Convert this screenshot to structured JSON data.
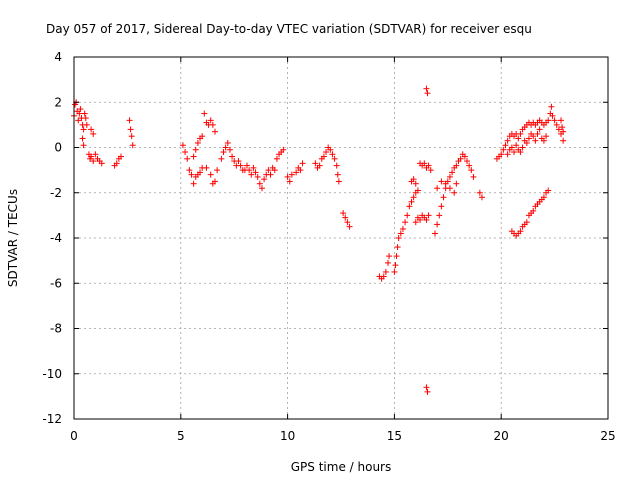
{
  "chart_data": {
    "type": "scatter",
    "title": "Day 057 of 2017, Sidereal Day-to-day VTEC variation (SDTVAR) for receiver esqu",
    "xlabel": "GPS time / hours",
    "ylabel": "SDTVAR / TECUs",
    "xlim": [
      0,
      25
    ],
    "ylim": [
      -12,
      4
    ],
    "xticks": [
      "0",
      "5",
      "10",
      "15",
      "20",
      "25"
    ],
    "yticks": [
      "4",
      "2",
      "0",
      "-2",
      "-4",
      "-6",
      "-8",
      "-10",
      "-12"
    ],
    "grid": true,
    "marker": "+",
    "series_color": "#ff0000",
    "series": [
      {
        "name": "SDTVAR",
        "points": [
          [
            0.0,
            1.4
          ],
          [
            0.05,
            1.9
          ],
          [
            0.1,
            2.0
          ],
          [
            0.15,
            1.6
          ],
          [
            0.2,
            1.2
          ],
          [
            0.25,
            1.5
          ],
          [
            0.3,
            1.7
          ],
          [
            0.35,
            1.3
          ],
          [
            0.4,
            1.0
          ],
          [
            0.45,
            0.8
          ],
          [
            0.5,
            1.5
          ],
          [
            0.55,
            1.3
          ],
          [
            0.6,
            1.0
          ],
          [
            0.4,
            0.4
          ],
          [
            0.45,
            0.1
          ],
          [
            0.7,
            -0.3
          ],
          [
            0.75,
            -0.5
          ],
          [
            0.8,
            -0.4
          ],
          [
            0.9,
            -0.6
          ],
          [
            1.0,
            -0.3
          ],
          [
            1.1,
            -0.5
          ],
          [
            1.2,
            -0.6
          ],
          [
            1.3,
            -0.7
          ],
          [
            0.8,
            0.8
          ],
          [
            0.9,
            0.6
          ],
          [
            1.9,
            -0.8
          ],
          [
            2.0,
            -0.7
          ],
          [
            2.1,
            -0.5
          ],
          [
            2.2,
            -0.4
          ],
          [
            2.6,
            1.2
          ],
          [
            2.65,
            0.8
          ],
          [
            2.7,
            0.5
          ],
          [
            2.75,
            0.1
          ],
          [
            5.1,
            0.1
          ],
          [
            5.2,
            -0.2
          ],
          [
            5.3,
            -0.5
          ],
          [
            5.4,
            -1.0
          ],
          [
            5.5,
            -1.2
          ],
          [
            5.6,
            -0.4
          ],
          [
            5.7,
            -0.1
          ],
          [
            5.8,
            0.2
          ],
          [
            5.9,
            0.4
          ],
          [
            6.0,
            0.5
          ],
          [
            5.6,
            -1.6
          ],
          [
            5.7,
            -1.3
          ],
          [
            5.8,
            -1.2
          ],
          [
            5.9,
            -1.1
          ],
          [
            6.0,
            -0.9
          ],
          [
            6.1,
            1.5
          ],
          [
            6.2,
            1.1
          ],
          [
            6.3,
            1.0
          ],
          [
            6.4,
            1.2
          ],
          [
            6.5,
            1.0
          ],
          [
            6.6,
            0.7
          ],
          [
            6.2,
            -0.9
          ],
          [
            6.4,
            -1.2
          ],
          [
            6.5,
            -1.6
          ],
          [
            6.6,
            -1.5
          ],
          [
            6.7,
            -1.0
          ],
          [
            6.9,
            -0.5
          ],
          [
            7.0,
            -0.2
          ],
          [
            7.1,
            0.0
          ],
          [
            7.2,
            0.2
          ],
          [
            7.3,
            -0.1
          ],
          [
            7.4,
            -0.4
          ],
          [
            7.5,
            -0.6
          ],
          [
            7.6,
            -0.8
          ],
          [
            7.7,
            -0.6
          ],
          [
            7.8,
            -0.8
          ],
          [
            7.9,
            -1.0
          ],
          [
            8.0,
            -1.0
          ],
          [
            8.1,
            -0.8
          ],
          [
            8.2,
            -1.0
          ],
          [
            8.3,
            -1.2
          ],
          [
            8.4,
            -0.9
          ],
          [
            8.5,
            -1.1
          ],
          [
            8.6,
            -1.3
          ],
          [
            8.7,
            -1.6
          ],
          [
            8.8,
            -1.8
          ],
          [
            8.9,
            -1.4
          ],
          [
            9.0,
            -1.2
          ],
          [
            9.1,
            -1.0
          ],
          [
            9.2,
            -1.2
          ],
          [
            9.3,
            -0.9
          ],
          [
            9.4,
            -1.0
          ],
          [
            9.5,
            -0.5
          ],
          [
            9.6,
            -0.3
          ],
          [
            9.7,
            -0.2
          ],
          [
            9.8,
            -0.1
          ],
          [
            10.0,
            -1.3
          ],
          [
            10.1,
            -1.5
          ],
          [
            10.2,
            -1.2
          ],
          [
            10.4,
            -1.1
          ],
          [
            10.5,
            -0.9
          ],
          [
            10.6,
            -1.0
          ],
          [
            10.7,
            -0.7
          ],
          [
            11.3,
            -0.7
          ],
          [
            11.4,
            -0.9
          ],
          [
            11.5,
            -0.8
          ],
          [
            11.6,
            -0.5
          ],
          [
            11.7,
            -0.4
          ],
          [
            11.8,
            -0.2
          ],
          [
            11.9,
            0.0
          ],
          [
            12.0,
            -0.1
          ],
          [
            12.1,
            -0.3
          ],
          [
            12.2,
            -0.5
          ],
          [
            12.3,
            -0.8
          ],
          [
            12.35,
            -1.2
          ],
          [
            12.4,
            -1.5
          ],
          [
            12.6,
            -2.9
          ],
          [
            12.7,
            -3.1
          ],
          [
            12.8,
            -3.3
          ],
          [
            12.9,
            -3.5
          ],
          [
            14.3,
            -5.7
          ],
          [
            14.4,
            -5.8
          ],
          [
            14.5,
            -5.7
          ],
          [
            14.6,
            -5.5
          ],
          [
            14.7,
            -5.1
          ],
          [
            14.75,
            -4.8
          ],
          [
            15.0,
            -5.5
          ],
          [
            15.05,
            -5.2
          ],
          [
            15.1,
            -4.8
          ],
          [
            15.15,
            -4.4
          ],
          [
            15.2,
            -4.0
          ],
          [
            15.3,
            -3.8
          ],
          [
            15.4,
            -3.6
          ],
          [
            15.5,
            -3.3
          ],
          [
            15.6,
            -3.0
          ],
          [
            15.7,
            -2.6
          ],
          [
            15.8,
            -2.4
          ],
          [
            15.9,
            -2.2
          ],
          [
            16.0,
            -2.0
          ],
          [
            15.8,
            -1.5
          ],
          [
            15.9,
            -1.4
          ],
          [
            16.0,
            -1.6
          ],
          [
            16.1,
            -1.9
          ],
          [
            16.2,
            -0.7
          ],
          [
            16.3,
            -0.8
          ],
          [
            16.4,
            -0.7
          ],
          [
            16.5,
            -0.9
          ],
          [
            16.6,
            -0.8
          ],
          [
            16.7,
            -1.0
          ],
          [
            16.0,
            -3.3
          ],
          [
            16.1,
            -3.1
          ],
          [
            16.2,
            -3.2
          ],
          [
            16.3,
            -3.0
          ],
          [
            16.4,
            -3.1
          ],
          [
            16.5,
            -3.2
          ],
          [
            16.6,
            -3.0
          ],
          [
            16.5,
            2.6
          ],
          [
            16.55,
            2.4
          ],
          [
            16.5,
            -10.6
          ],
          [
            16.55,
            -10.8
          ],
          [
            16.9,
            -3.8
          ],
          [
            17.0,
            -3.4
          ],
          [
            17.1,
            -3.0
          ],
          [
            17.2,
            -2.6
          ],
          [
            17.3,
            -2.2
          ],
          [
            17.4,
            -1.8
          ],
          [
            17.5,
            -1.5
          ],
          [
            17.6,
            -1.3
          ],
          [
            17.7,
            -1.1
          ],
          [
            17.8,
            -0.9
          ],
          [
            17.9,
            -0.8
          ],
          [
            18.0,
            -0.6
          ],
          [
            18.1,
            -0.5
          ],
          [
            18.2,
            -0.3
          ],
          [
            18.3,
            -0.4
          ],
          [
            18.4,
            -0.6
          ],
          [
            18.5,
            -0.8
          ],
          [
            18.6,
            -1.0
          ],
          [
            18.7,
            -1.3
          ],
          [
            17.0,
            -1.8
          ],
          [
            17.2,
            -1.5
          ],
          [
            17.4,
            -1.6
          ],
          [
            17.6,
            -1.8
          ],
          [
            17.8,
            -2.0
          ],
          [
            17.9,
            -1.6
          ],
          [
            19.0,
            -2.0
          ],
          [
            19.1,
            -2.2
          ],
          [
            19.8,
            -0.5
          ],
          [
            19.9,
            -0.4
          ],
          [
            20.0,
            -0.3
          ],
          [
            20.1,
            -0.1
          ],
          [
            20.2,
            0.1
          ],
          [
            20.3,
            0.3
          ],
          [
            20.4,
            0.5
          ],
          [
            20.5,
            0.6
          ],
          [
            20.6,
            0.5
          ],
          [
            20.7,
            0.6
          ],
          [
            20.8,
            0.4
          ],
          [
            20.9,
            0.6
          ],
          [
            21.0,
            0.8
          ],
          [
            21.1,
            0.9
          ],
          [
            21.2,
            1.0
          ],
          [
            21.3,
            1.1
          ],
          [
            21.4,
            1.0
          ],
          [
            21.5,
            1.1
          ],
          [
            21.6,
            1.0
          ],
          [
            21.7,
            1.1
          ],
          [
            21.8,
            1.2
          ],
          [
            21.9,
            1.1
          ],
          [
            22.0,
            1.0
          ],
          [
            22.1,
            1.1
          ],
          [
            20.3,
            -0.3
          ],
          [
            20.4,
            -0.1
          ],
          [
            20.5,
            0.0
          ],
          [
            20.6,
            -0.2
          ],
          [
            20.7,
            0.1
          ],
          [
            20.8,
            -0.1
          ],
          [
            20.9,
            -0.2
          ],
          [
            21.0,
            0.0
          ],
          [
            21.1,
            0.3
          ],
          [
            21.2,
            0.2
          ],
          [
            21.3,
            0.4
          ],
          [
            21.4,
            0.6
          ],
          [
            21.5,
            0.5
          ],
          [
            21.6,
            0.3
          ],
          [
            21.7,
            0.6
          ],
          [
            21.8,
            0.8
          ],
          [
            21.9,
            0.4
          ],
          [
            22.0,
            0.3
          ],
          [
            22.1,
            0.5
          ],
          [
            22.2,
            1.2
          ],
          [
            22.3,
            1.5
          ],
          [
            22.35,
            1.8
          ],
          [
            22.4,
            1.4
          ],
          [
            22.5,
            1.2
          ],
          [
            22.6,
            1.0
          ],
          [
            22.7,
            0.8
          ],
          [
            22.8,
            0.6
          ],
          [
            22.85,
            0.9
          ],
          [
            22.9,
            0.3
          ],
          [
            22.8,
            1.2
          ],
          [
            22.9,
            0.7
          ],
          [
            20.5,
            -3.7
          ],
          [
            20.6,
            -3.8
          ],
          [
            20.7,
            -3.9
          ],
          [
            20.8,
            -3.8
          ],
          [
            20.9,
            -3.7
          ],
          [
            21.0,
            -3.5
          ],
          [
            21.1,
            -3.4
          ],
          [
            21.2,
            -3.3
          ],
          [
            21.3,
            -3.0
          ],
          [
            21.4,
            -2.9
          ],
          [
            21.5,
            -2.8
          ],
          [
            21.6,
            -2.6
          ],
          [
            21.7,
            -2.5
          ],
          [
            21.8,
            -2.4
          ],
          [
            21.9,
            -2.3
          ],
          [
            22.0,
            -2.2
          ],
          [
            22.1,
            -2.0
          ],
          [
            22.2,
            -1.9
          ]
        ]
      }
    ]
  }
}
